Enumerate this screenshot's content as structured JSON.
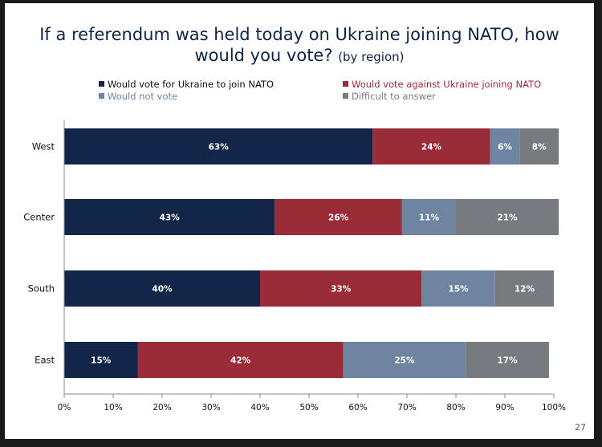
{
  "title": {
    "main_line1": "If a referendum was held today on Ukraine joining NATO, how",
    "main_line2": "would you vote?",
    "suffix": "(by region)"
  },
  "page_number": "27",
  "colors": {
    "join": "#12264a",
    "against": "#9a2c38",
    "not_vote": "#6f84a0",
    "difficult": "#777b80"
  },
  "chart_data": {
    "type": "bar",
    "orientation": "horizontal",
    "stacked": true,
    "categories": [
      "West",
      "Center",
      "South",
      "East"
    ],
    "series": [
      {
        "name": "Would vote for Ukraine to join NATO",
        "values": [
          63,
          43,
          40,
          15
        ],
        "labels": [
          "63%",
          "43%",
          "40%",
          "15%"
        ],
        "color": "#12264a"
      },
      {
        "name": "Would vote against Ukraine joining NATO",
        "values": [
          24,
          26,
          33,
          42
        ],
        "labels": [
          "24%",
          "26%",
          "33%",
          "42%"
        ],
        "color": "#9a2c38"
      },
      {
        "name": "Would not vote",
        "values": [
          6,
          11,
          15,
          25
        ],
        "labels": [
          "6%",
          "11%",
          "15%",
          "25%"
        ],
        "color": "#6f84a0"
      },
      {
        "name": "Difficult to answer",
        "values": [
          8,
          21,
          12,
          17
        ],
        "labels": [
          "8%",
          "21%",
          "12%",
          "17%"
        ],
        "color": "#777b80"
      }
    ],
    "x_ticks": [
      "0%",
      "10%",
      "20%",
      "30%",
      "40%",
      "50%",
      "60%",
      "70%",
      "80%",
      "90%",
      "100%"
    ],
    "xlim": [
      0,
      100
    ],
    "grid": false,
    "legend_position": "top"
  }
}
